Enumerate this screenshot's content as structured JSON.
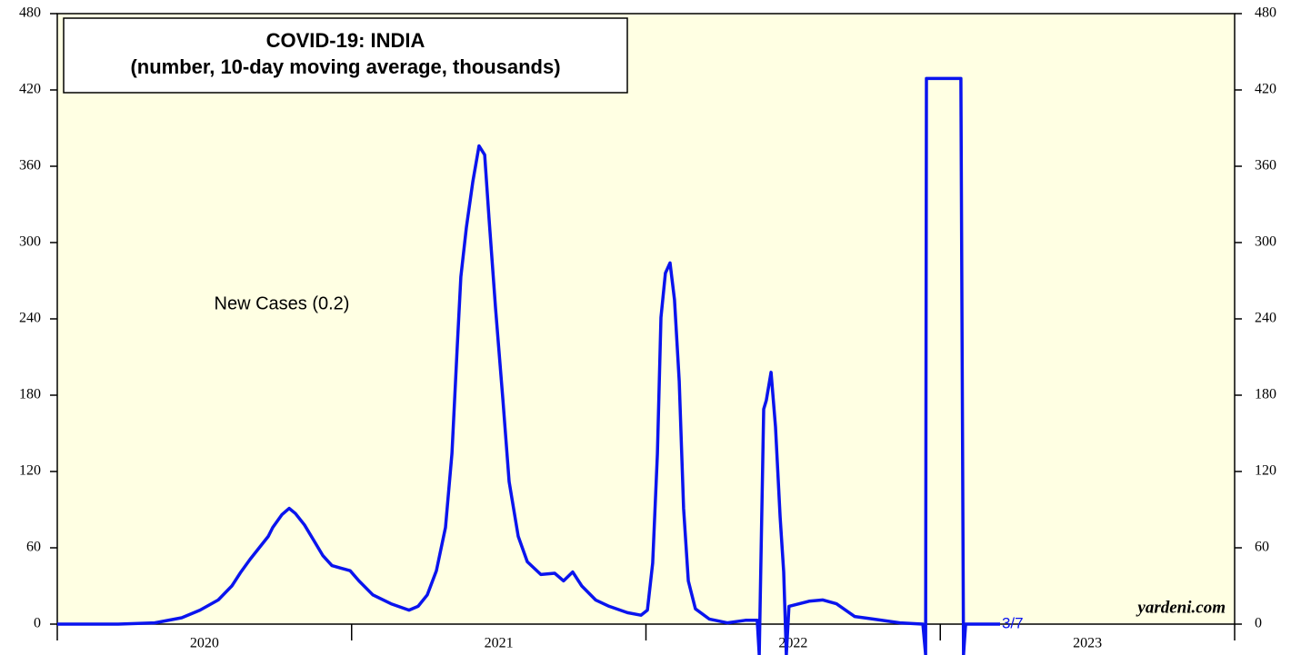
{
  "chart_data": {
    "type": "line",
    "title": "COVID-19: INDIA",
    "subtitle": "(number, 10-day moving average, thousands)",
    "source": "yardeni.com",
    "end_label": "3/7",
    "x": [
      2020.0,
      2020.161,
      2020.207,
      2020.331,
      2020.423,
      2020.485,
      2020.547,
      2020.593,
      2020.624,
      2020.655,
      2020.686,
      2020.717,
      2020.732,
      2020.763,
      2020.788,
      2020.809,
      2020.84,
      2020.871,
      2020.902,
      2020.933,
      2020.964,
      2020.995,
      2021.025,
      2021.072,
      2021.134,
      2021.195,
      2021.226,
      2021.257,
      2021.288,
      2021.319,
      2021.341,
      2021.359,
      2021.371,
      2021.39,
      2021.412,
      2021.433,
      2021.452,
      2021.467,
      2021.489,
      2021.514,
      2021.535,
      2021.566,
      2021.597,
      2021.643,
      2021.69,
      2021.72,
      2021.751,
      2021.782,
      2021.829,
      2021.875,
      2021.937,
      2021.983,
      2022.005,
      2022.023,
      2022.039,
      2022.051,
      2022.066,
      2022.082,
      2022.097,
      2022.113,
      2022.128,
      2022.144,
      2022.168,
      2022.215,
      2022.276,
      2022.338,
      2022.378,
      2022.385,
      2022.4,
      2022.409,
      2022.425,
      2022.44,
      2022.456,
      2022.468,
      2022.477,
      2022.486,
      2022.554,
      2022.601,
      2022.647,
      2022.709,
      2022.771,
      2022.863,
      2022.941,
      2022.95,
      2022.953,
      2023.07,
      2023.079,
      2023.086,
      2023.203
    ],
    "series": [
      {
        "name": "New Cases (0.2)",
        "color": "#0a14ee",
        "values": [
          0,
          0,
          0,
          1,
          5,
          11,
          19,
          30,
          41,
          51,
          60,
          69,
          76,
          86,
          91,
          87,
          78,
          66,
          54,
          46,
          44,
          42,
          34,
          23,
          16,
          11,
          14,
          23,
          42,
          76,
          134,
          219,
          273,
          312,
          348,
          376,
          369,
          319,
          248,
          176,
          112,
          69,
          49,
          39,
          40,
          34,
          41,
          30,
          19,
          14,
          9,
          7,
          11,
          48,
          134,
          241,
          276,
          284,
          255,
          191,
          91,
          34,
          12,
          4,
          1,
          3,
          3,
          -24,
          169,
          176,
          198,
          155,
          84,
          41,
          -24,
          14,
          18,
          19,
          16,
          6,
          4,
          1,
          0,
          -24,
          429,
          429,
          -24,
          0,
          0
        ]
      }
    ],
    "xlim": [
      2020,
      2024
    ],
    "xtick_marks": [
      2020,
      2021,
      2022,
      2023,
      2024
    ],
    "xticks": [
      {
        "value": 2020.5,
        "label": "2020"
      },
      {
        "value": 2021.5,
        "label": "2021"
      },
      {
        "value": 2022.5,
        "label": "2022"
      },
      {
        "value": 2023.5,
        "label": "2023"
      }
    ],
    "ylim": [
      0,
      480
    ],
    "yticks": [
      0,
      60,
      120,
      180,
      240,
      300,
      360,
      420,
      480
    ],
    "background": "#ffffe3"
  }
}
